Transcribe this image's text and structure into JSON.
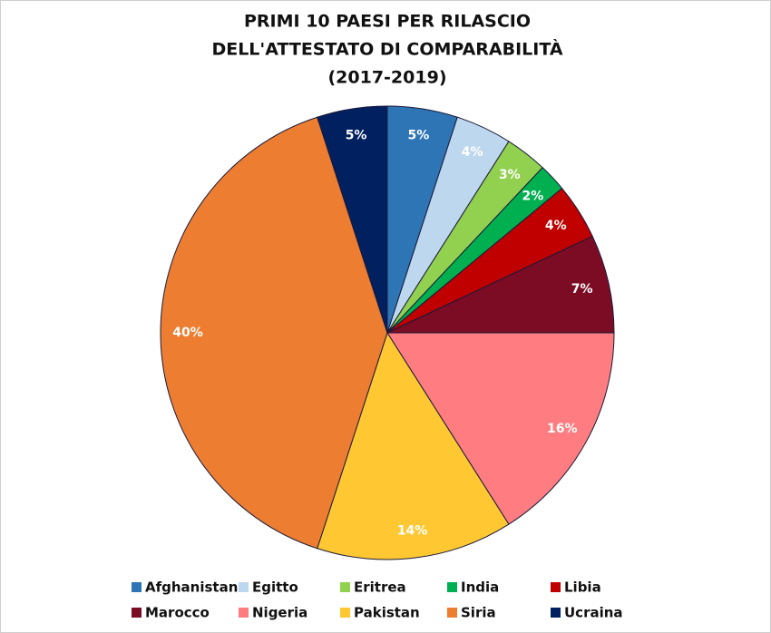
{
  "chart_data": {
    "type": "pie",
    "title": [
      "PRIMI 10 PAESI PER RILASCIO",
      "DELL'ATTESTATO DI COMPARABILITÀ",
      "(2017-2019)"
    ],
    "categories": [
      "Afghanistan",
      "Egitto",
      "Eritrea",
      "India",
      "Libia",
      "Marocco",
      "Nigeria",
      "Pakistan",
      "Siria",
      "Ucraina"
    ],
    "values": [
      5,
      4,
      3,
      2,
      4,
      7,
      16,
      14,
      40,
      5
    ],
    "value_labels": [
      "5%",
      "4%",
      "3%",
      "2%",
      "4%",
      "7%",
      "16%",
      "14%",
      "40%",
      "5%"
    ],
    "colors": [
      "#2e75b6",
      "#bdd7ee",
      "#92d050",
      "#00b050",
      "#c00000",
      "#7b0c24",
      "#ff7c80",
      "#ffc832",
      "#ed7d31",
      "#002060"
    ],
    "legend": "bottom"
  }
}
